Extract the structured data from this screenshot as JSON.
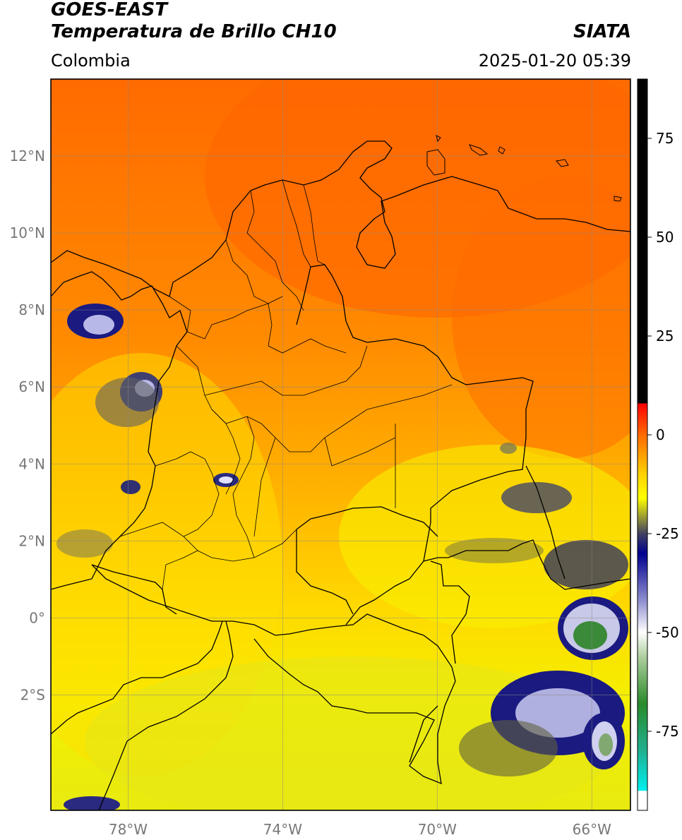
{
  "header": {
    "satellite": "GOES-EAST",
    "product": "Temperatura de Brillo CH10",
    "agency": "SIATA",
    "region": "Colombia",
    "datetime": "2025-01-20 05:39"
  },
  "map": {
    "lon_range": [
      -80,
      -65
    ],
    "lat_range": [
      -5,
      14
    ],
    "lat_ticks": [
      {
        "value": 12,
        "label": "12°N"
      },
      {
        "value": 10,
        "label": "10°N"
      },
      {
        "value": 8,
        "label": "8°N"
      },
      {
        "value": 6,
        "label": "6°N"
      },
      {
        "value": 4,
        "label": "4°N"
      },
      {
        "value": 2,
        "label": "2°N"
      },
      {
        "value": 0,
        "label": "0°"
      },
      {
        "value": -2,
        "label": "2°S"
      }
    ],
    "lon_ticks": [
      {
        "value": -78,
        "label": "78°W"
      },
      {
        "value": -74,
        "label": "74°W"
      },
      {
        "value": -70,
        "label": "70°W"
      },
      {
        "value": -66,
        "label": "66°W"
      }
    ],
    "grid": true
  },
  "colorbar": {
    "range": [
      -95,
      90
    ],
    "ticks": [
      {
        "value": 75,
        "label": "75"
      },
      {
        "value": 50,
        "label": "50"
      },
      {
        "value": 25,
        "label": "25"
      },
      {
        "value": 0,
        "label": "0"
      },
      {
        "value": -25,
        "label": "-25"
      },
      {
        "value": -50,
        "label": "-50"
      },
      {
        "value": -75,
        "label": "-75"
      }
    ],
    "stops": [
      {
        "value": 90,
        "color": "#000000"
      },
      {
        "value": 8,
        "color": "#000000"
      },
      {
        "value": 7.9,
        "color": "#ff0000"
      },
      {
        "value": 0,
        "color": "#ff6a00"
      },
      {
        "value": -10,
        "color": "#ffd200"
      },
      {
        "value": -16,
        "color": "#ffff00"
      },
      {
        "value": -22,
        "color": "#808040"
      },
      {
        "value": -25,
        "color": "#404060"
      },
      {
        "value": -30,
        "color": "#000090"
      },
      {
        "value": -42,
        "color": "#9090d0"
      },
      {
        "value": -50,
        "color": "#ffffff"
      },
      {
        "value": -56,
        "color": "#b0d0a0"
      },
      {
        "value": -68,
        "color": "#2a8a2a"
      },
      {
        "value": -80,
        "color": "#20b090"
      },
      {
        "value": -90,
        "color": "#00f0f0"
      },
      {
        "value": -90.1,
        "color": "#ffffff"
      },
      {
        "value": -95,
        "color": "#ffffff"
      }
    ]
  }
}
